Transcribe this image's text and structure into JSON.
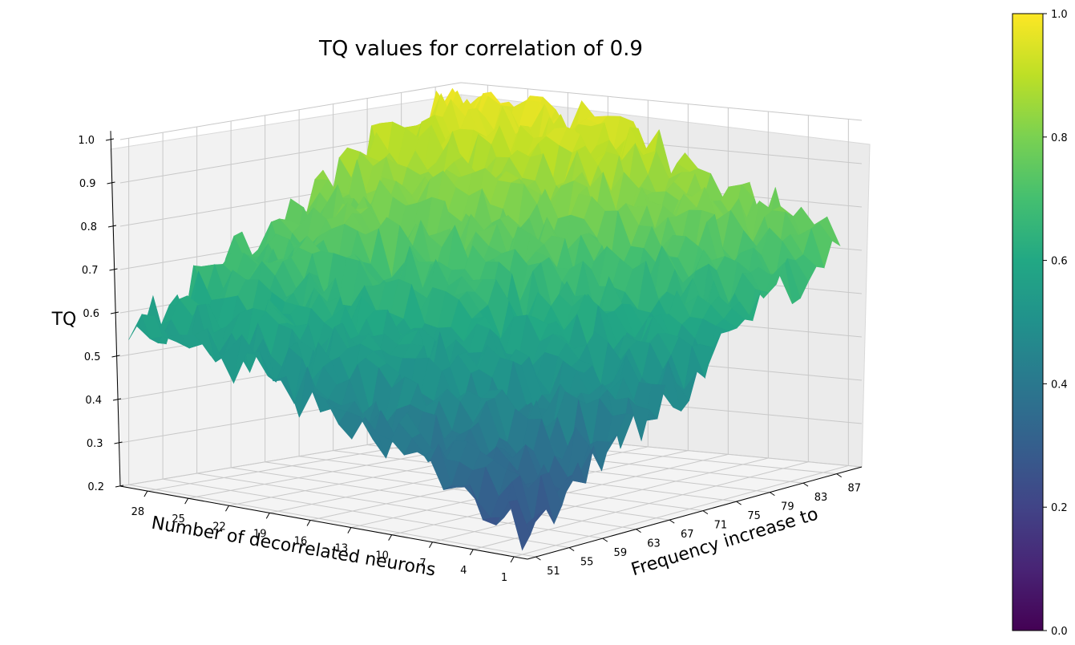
{
  "chart_data": {
    "type": "surface3d",
    "title": "TQ values for correlation of 0.9",
    "zlabel": "TQ",
    "xlabel": "Number of decorrelated neurons",
    "ylabel": "Frequency increase to",
    "x_ticks": [
      "28",
      "25",
      "22",
      "19",
      "16",
      "13",
      "10",
      "7",
      "4",
      "1"
    ],
    "y_ticks": [
      "51",
      "55",
      "59",
      "63",
      "67",
      "71",
      "75",
      "79",
      "83",
      "87"
    ],
    "z_ticks": [
      "0.2",
      "0.3",
      "0.4",
      "0.5",
      "0.6",
      "0.7",
      "0.8",
      "0.9",
      "1.0"
    ],
    "xlim": [
      30,
      0
    ],
    "ylim": [
      50,
      90
    ],
    "zlim": [
      0.2,
      1.0
    ],
    "colorbar": {
      "colormap": "viridis",
      "range": [
        0.0,
        1.0
      ],
      "ticks": [
        "0.0",
        "0.2",
        "0.4",
        "0.6",
        "0.8",
        "1.0"
      ]
    },
    "surface_summary": {
      "x_values": [
        1,
        4,
        7,
        10,
        13,
        16,
        19,
        22,
        25,
        28,
        30
      ],
      "y_values": [
        51,
        55,
        59,
        63,
        67,
        71,
        75,
        79,
        83,
        87,
        90
      ],
      "z_approx": [
        [
          0.25,
          0.3,
          0.34,
          0.38,
          0.42,
          0.46,
          0.5,
          0.52,
          0.55,
          0.55,
          0.55
        ],
        [
          0.29,
          0.33,
          0.38,
          0.43,
          0.46,
          0.5,
          0.54,
          0.57,
          0.59,
          0.59,
          0.59
        ],
        [
          0.34,
          0.38,
          0.43,
          0.47,
          0.51,
          0.55,
          0.58,
          0.61,
          0.63,
          0.63,
          0.63
        ],
        [
          0.4,
          0.44,
          0.48,
          0.52,
          0.56,
          0.6,
          0.63,
          0.66,
          0.68,
          0.68,
          0.68
        ],
        [
          0.45,
          0.49,
          0.53,
          0.57,
          0.61,
          0.65,
          0.68,
          0.71,
          0.73,
          0.73,
          0.73
        ],
        [
          0.5,
          0.54,
          0.58,
          0.62,
          0.66,
          0.7,
          0.73,
          0.76,
          0.78,
          0.78,
          0.78
        ],
        [
          0.55,
          0.59,
          0.63,
          0.67,
          0.71,
          0.75,
          0.78,
          0.81,
          0.83,
          0.83,
          0.83
        ],
        [
          0.6,
          0.64,
          0.68,
          0.72,
          0.76,
          0.8,
          0.83,
          0.86,
          0.88,
          0.88,
          0.88
        ],
        [
          0.66,
          0.7,
          0.74,
          0.78,
          0.82,
          0.86,
          0.89,
          0.91,
          0.92,
          0.92,
          0.92
        ],
        [
          0.7,
          0.74,
          0.78,
          0.82,
          0.86,
          0.9,
          0.93,
          0.95,
          0.96,
          0.96,
          0.96
        ],
        [
          0.72,
          0.76,
          0.8,
          0.84,
          0.88,
          0.92,
          0.95,
          0.97,
          0.98,
          0.98,
          0.98
        ]
      ]
    }
  }
}
